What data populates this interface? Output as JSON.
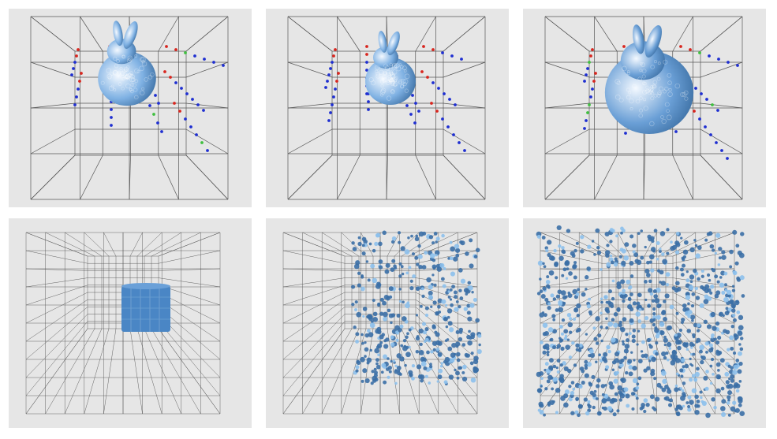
{
  "figure": {
    "rows": 2,
    "columns": 3,
    "background_color": "#e6e6e6",
    "grid_line_color": "#555555",
    "panels": [
      {
        "content": "bunny-with-sampling-probes",
        "probe_colors": [
          "#d8261f",
          "#1f2fd1",
          "#3fbf3f"
        ],
        "mesh_color": "#7fb1e3"
      },
      {
        "content": "bunny-with-sampling-probes",
        "probe_colors": [
          "#d8261f",
          "#1f2fd1",
          "#3fbf3f"
        ],
        "mesh_color": "#7fb1e3"
      },
      {
        "content": "bunny-with-sampling-probes",
        "probe_colors": [
          "#d8261f",
          "#1f2fd1",
          "#3fbf3f"
        ],
        "mesh_color": "#6a9fd6"
      },
      {
        "content": "cylinder-in-dense-grid",
        "mesh_color": "#4a86c5"
      },
      {
        "content": "particle-cloud-in-dense-grid",
        "particle_color": "#3b6fa6"
      },
      {
        "content": "particle-cloud-in-dense-grid",
        "particle_color": "#3b6fa6"
      }
    ]
  }
}
